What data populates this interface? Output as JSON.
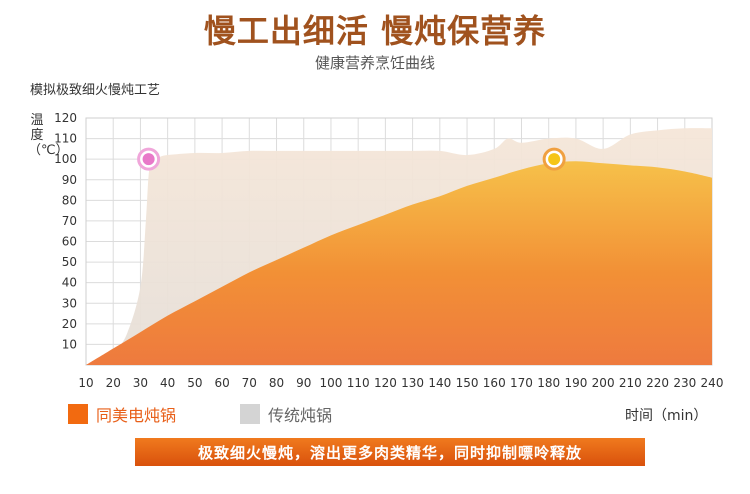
{
  "header": {
    "title": "慢工出细活 慢炖保营养",
    "subtitle": "健康营养烹饪曲线"
  },
  "caption": "模拟极致细火慢炖工艺",
  "legend": {
    "electric": {
      "label": "同美电炖锅",
      "color": "#f26a10"
    },
    "traditional": {
      "label": "传统炖锅",
      "color": "#d4d4d4"
    }
  },
  "x_unit": "时间（min）",
  "banner": "极致细火慢炖，溶出更多肉类精华，同时抑制嘌呤释放",
  "chart_data": {
    "type": "area",
    "ylabel": "温度（℃）",
    "x_ticks": [
      10,
      20,
      30,
      40,
      50,
      60,
      70,
      80,
      90,
      100,
      110,
      120,
      130,
      140,
      150,
      160,
      170,
      180,
      190,
      200,
      210,
      220,
      230,
      240
    ],
    "y_ticks": [
      10,
      20,
      30,
      40,
      50,
      60,
      70,
      80,
      90,
      100,
      110,
      120
    ],
    "xlim": [
      10,
      240
    ],
    "ylim": [
      0,
      120
    ],
    "grid": true,
    "series": [
      {
        "name": "传统炖锅",
        "color": "#f1e3d6",
        "x": [
          10,
          15,
          20,
          25,
          30,
          32,
          33,
          34,
          35,
          37,
          40,
          50,
          60,
          70,
          80,
          90,
          100,
          110,
          120,
          130,
          140,
          150,
          160,
          165,
          170,
          180,
          190,
          200,
          210,
          220,
          230,
          240
        ],
        "y": [
          0,
          2,
          6,
          15,
          38,
          70,
          92,
          99,
          100,
          101,
          102,
          103,
          103,
          104,
          104,
          104,
          104,
          104,
          104,
          104,
          104,
          102,
          105,
          110,
          108,
          110,
          110,
          105,
          112,
          114,
          115,
          115
        ]
      },
      {
        "name": "同美电炖锅",
        "color": "#f39a32",
        "x": [
          10,
          20,
          30,
          40,
          50,
          60,
          70,
          80,
          90,
          100,
          110,
          120,
          130,
          140,
          150,
          160,
          170,
          180,
          190,
          200,
          210,
          220,
          230,
          240
        ],
        "y": [
          0,
          8,
          16,
          24,
          31,
          38,
          45,
          51,
          57,
          63,
          68,
          73,
          78,
          82,
          87,
          91,
          95,
          98,
          99,
          98,
          97,
          96,
          94,
          91
        ]
      }
    ],
    "markers": [
      {
        "series": "传统炖锅",
        "x": 33,
        "y": 100,
        "color": "#e879c9"
      },
      {
        "series": "同美电炖锅",
        "x": 182,
        "y": 100,
        "color": "#f5c518"
      }
    ]
  }
}
